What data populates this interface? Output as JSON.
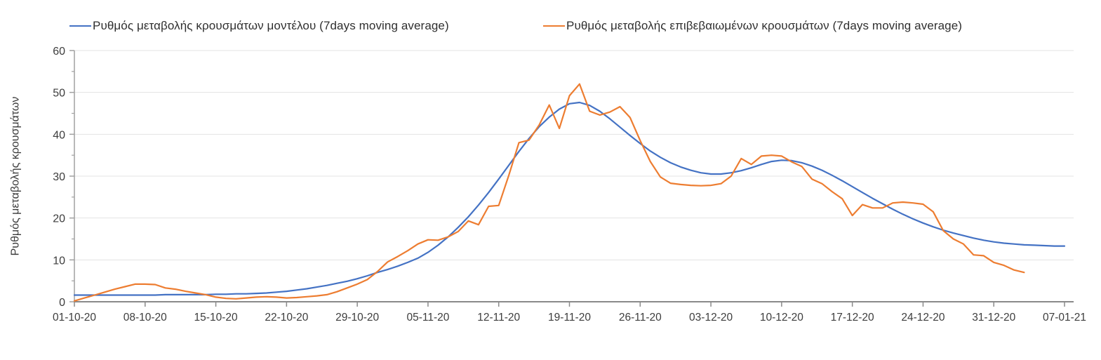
{
  "page": {
    "background": "#ffffff"
  },
  "chart_data": {
    "type": "line",
    "title": "",
    "xlabel": "",
    "ylabel": "Ρυθμός μεταβολής κρουσμάτων",
    "ylim": [
      0,
      60
    ],
    "y_ticks": [
      0,
      10,
      20,
      30,
      40,
      50,
      60
    ],
    "y_minor_tick_step": 5,
    "grid": "horizontal",
    "legend_position": "top",
    "x_tick_step_days": 7,
    "x_tick_labels": [
      "01-10-20",
      "08-10-20",
      "15-10-20",
      "22-10-20",
      "29-10-20",
      "05-11-20",
      "12-11-20",
      "19-11-20",
      "26-11-20",
      "03-12-20",
      "10-12-20",
      "17-12-20",
      "24-12-20",
      "31-12-20",
      "07-01-21"
    ],
    "x": [
      "01-10-20",
      "02-10-20",
      "03-10-20",
      "04-10-20",
      "05-10-20",
      "06-10-20",
      "07-10-20",
      "08-10-20",
      "09-10-20",
      "10-10-20",
      "11-10-20",
      "12-10-20",
      "13-10-20",
      "14-10-20",
      "15-10-20",
      "16-10-20",
      "17-10-20",
      "18-10-20",
      "19-10-20",
      "20-10-20",
      "21-10-20",
      "22-10-20",
      "23-10-20",
      "24-10-20",
      "25-10-20",
      "26-10-20",
      "27-10-20",
      "28-10-20",
      "29-10-20",
      "30-10-20",
      "31-10-20",
      "01-11-20",
      "02-11-20",
      "03-11-20",
      "04-11-20",
      "05-11-20",
      "06-11-20",
      "07-11-20",
      "08-11-20",
      "09-11-20",
      "10-11-20",
      "11-11-20",
      "12-11-20",
      "13-11-20",
      "14-11-20",
      "15-11-20",
      "16-11-20",
      "17-11-20",
      "18-11-20",
      "19-11-20",
      "20-11-20",
      "21-11-20",
      "22-11-20",
      "23-11-20",
      "24-11-20",
      "25-11-20",
      "26-11-20",
      "27-11-20",
      "28-11-20",
      "29-11-20",
      "30-11-20",
      "01-12-20",
      "02-12-20",
      "03-12-20",
      "04-12-20",
      "05-12-20",
      "06-12-20",
      "07-12-20",
      "08-12-20",
      "09-12-20",
      "10-12-20",
      "11-12-20",
      "12-12-20",
      "13-12-20",
      "14-12-20",
      "15-12-20",
      "16-12-20",
      "17-12-20",
      "18-12-20",
      "19-12-20",
      "20-12-20",
      "21-12-20",
      "22-12-20",
      "23-12-20",
      "24-12-20",
      "25-12-20",
      "26-12-20",
      "27-12-20",
      "28-12-20",
      "29-12-20",
      "30-12-20",
      "31-12-20",
      "01-01-21",
      "02-01-21",
      "03-01-21",
      "04-01-21",
      "05-01-21",
      "06-01-21",
      "07-01-21"
    ],
    "series": [
      {
        "name": "Ρυθμός μεταβολής κρουσμάτων μοντέλου (7days moving average)",
        "color": "#4472c4",
        "values": [
          1.6,
          1.6,
          1.6,
          1.6,
          1.6,
          1.6,
          1.6,
          1.6,
          1.6,
          1.7,
          1.7,
          1.7,
          1.7,
          1.7,
          1.8,
          1.8,
          1.9,
          1.9,
          2.0,
          2.1,
          2.3,
          2.5,
          2.8,
          3.1,
          3.5,
          3.9,
          4.4,
          4.9,
          5.5,
          6.2,
          7.0,
          7.7,
          8.5,
          9.4,
          10.4,
          11.8,
          13.5,
          15.5,
          17.8,
          20.3,
          23.1,
          26.1,
          29.3,
          32.6,
          35.9,
          39.0,
          41.8,
          44.1,
          46.0,
          47.3,
          47.6,
          46.9,
          45.5,
          43.7,
          41.7,
          39.7,
          37.8,
          36.0,
          34.5,
          33.2,
          32.2,
          31.4,
          30.8,
          30.5,
          30.5,
          30.8,
          31.3,
          32.0,
          32.8,
          33.5,
          33.8,
          33.7,
          33.2,
          32.4,
          31.4,
          30.2,
          28.9,
          27.5,
          26.1,
          24.7,
          23.4,
          22.1,
          20.9,
          19.8,
          18.8,
          17.9,
          17.1,
          16.4,
          15.8,
          15.2,
          14.7,
          14.3,
          14.0,
          13.8,
          13.6,
          13.5,
          13.4,
          13.3,
          13.3
        ]
      },
      {
        "name": "Ρυθμός μεταβολής επιβεβαιωμένων κρουσμάτων (7days moving average)",
        "color": "#ed7d31",
        "values": [
          0.2,
          0.9,
          1.6,
          2.3,
          3.0,
          3.6,
          4.2,
          4.2,
          4.1,
          3.3,
          3.0,
          2.5,
          2.1,
          1.7,
          1.1,
          0.8,
          0.7,
          0.9,
          1.1,
          1.2,
          1.1,
          0.9,
          1.0,
          1.2,
          1.4,
          1.7,
          2.4,
          3.3,
          4.2,
          5.3,
          7.2,
          9.5,
          10.8,
          12.2,
          13.8,
          14.8,
          14.7,
          15.5,
          16.8,
          19.3,
          18.4,
          22.8,
          23.0,
          30.2,
          38.0,
          38.6,
          42.2,
          47.0,
          41.4,
          49.2,
          52.0,
          45.5,
          44.6,
          45.3,
          46.6,
          44.0,
          38.5,
          33.5,
          29.8,
          28.3,
          28.0,
          27.8,
          27.7,
          27.8,
          28.2,
          30.0,
          34.2,
          32.8,
          34.8,
          35.0,
          34.8,
          33.4,
          32.3,
          29.3,
          28.2,
          26.3,
          24.6,
          20.6,
          23.2,
          22.4,
          22.4,
          23.6,
          23.8,
          23.6,
          23.3,
          21.5,
          17.0,
          15.0,
          13.8,
          11.2,
          11.0,
          9.4,
          8.7,
          7.6,
          7.0,
          null,
          null,
          null,
          null
        ]
      }
    ]
  }
}
